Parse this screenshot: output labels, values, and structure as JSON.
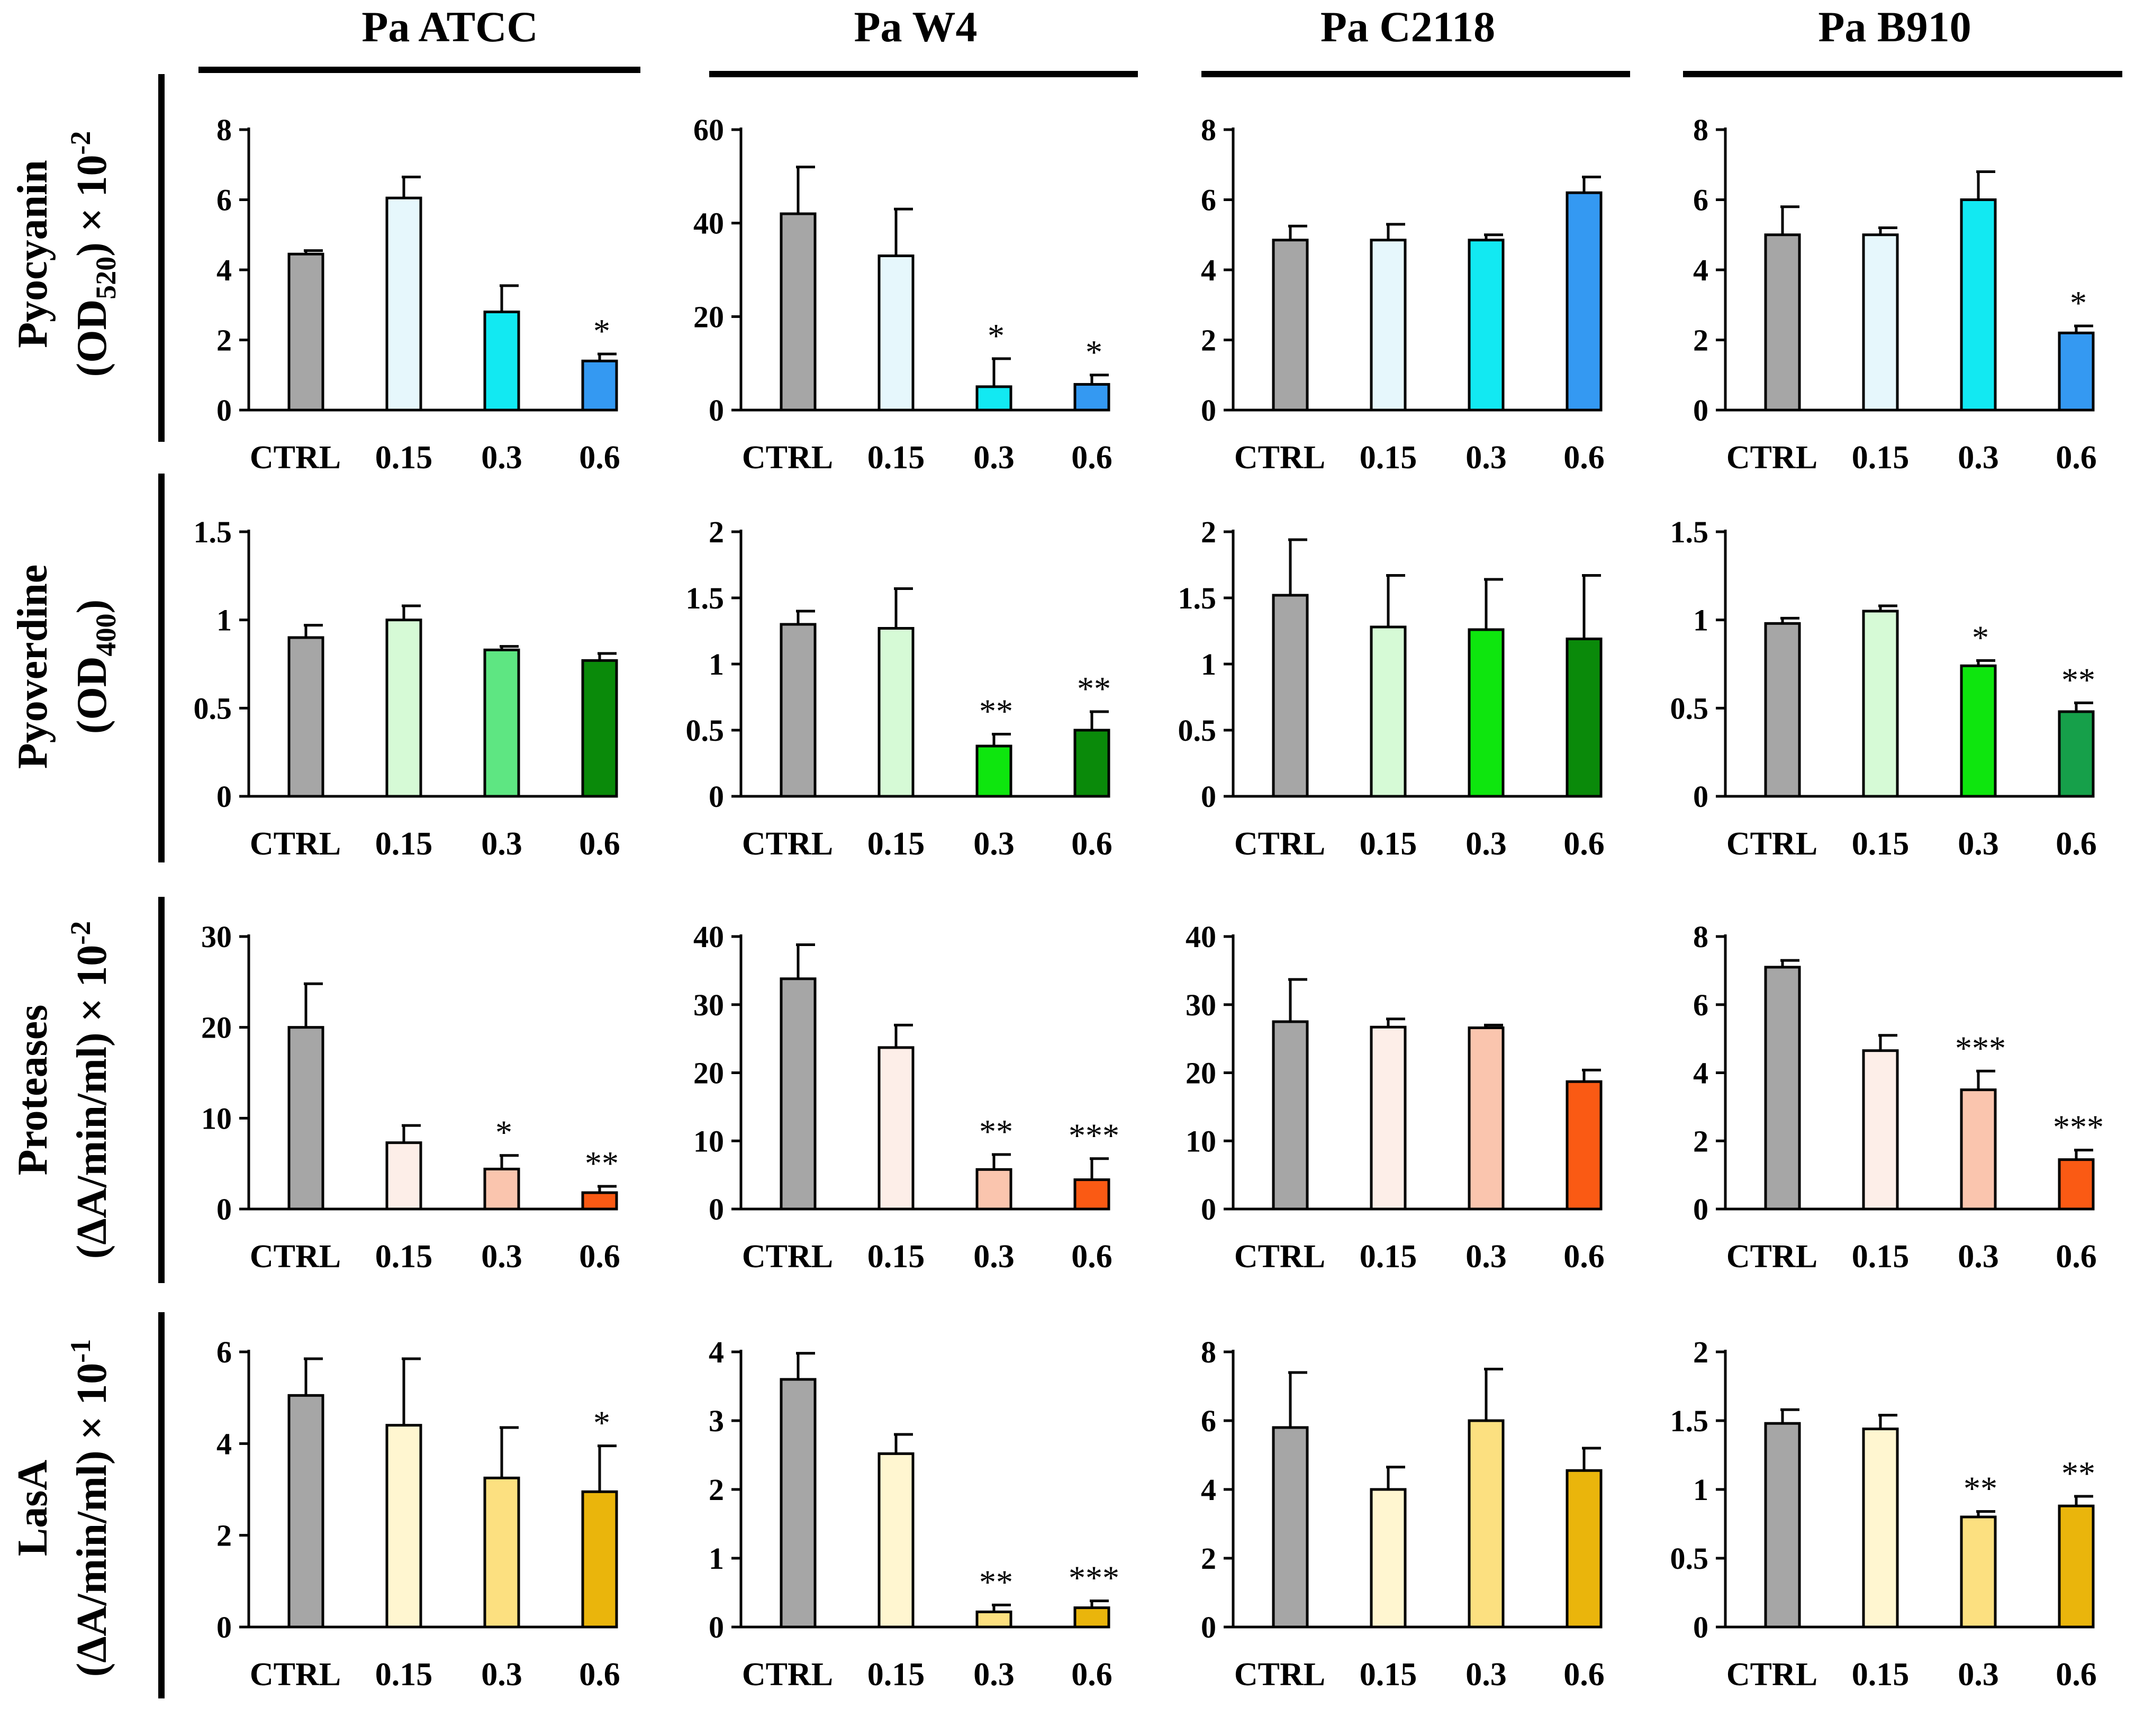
{
  "figure": {
    "categories": [
      "CTRL",
      "0.15",
      "0.3",
      "0.6"
    ],
    "strains": [
      "Pa ATCC",
      "Pa W4",
      "Pa C2118",
      "Pa B910"
    ],
    "row_labels": [
      {
        "line1": "Pyocyanin",
        "line2_parts": [
          "(OD",
          "520",
          ") × 10",
          "-2"
        ]
      },
      {
        "line1": "Pyoverdine",
        "line2_parts": [
          "(OD",
          "400",
          ")",
          ""
        ]
      },
      {
        "line1": "Proteases",
        "line2_parts": [
          "(ΔA/min/ml) × 10",
          "",
          "",
          "-2"
        ]
      },
      {
        "line1": "LasA",
        "line2_parts": [
          "(ΔA/min/ml) × 10",
          "",
          "",
          "-1"
        ]
      }
    ]
  },
  "chart_data": [
    {
      "type": "bar",
      "row": 0,
      "col": 0,
      "title": "Pa ATCC",
      "ylabel": "Pyocyanin (OD520) × 10-2",
      "ylim": [
        0,
        8
      ],
      "yticks": [
        0,
        2,
        4,
        6,
        8
      ],
      "categories": [
        "CTRL",
        "0.15",
        "0.3",
        "0.6"
      ],
      "values": [
        4.45,
        6.05,
        2.8,
        1.4
      ],
      "errors": [
        0.1,
        0.6,
        0.75,
        0.2
      ],
      "significance": [
        "",
        "",
        "",
        "*"
      ],
      "colors": [
        "#a6a6a6",
        "#e6f7fc",
        "#12e9f2",
        "#3499f2"
      ]
    },
    {
      "type": "bar",
      "row": 0,
      "col": 1,
      "title": "Pa W4",
      "ylabel": "Pyocyanin (OD520) × 10-2",
      "ylim": [
        0,
        60
      ],
      "yticks": [
        0,
        20,
        40,
        60
      ],
      "categories": [
        "CTRL",
        "0.15",
        "0.3",
        "0.6"
      ],
      "values": [
        42,
        33,
        5,
        5.5
      ],
      "errors": [
        10,
        10,
        6,
        2
      ],
      "significance": [
        "",
        "",
        "*",
        "*"
      ],
      "colors": [
        "#a6a6a6",
        "#e6f7fc",
        "#12e9f2",
        "#3499f2"
      ]
    },
    {
      "type": "bar",
      "row": 0,
      "col": 2,
      "title": "Pa C2118",
      "ylabel": "Pyocyanin (OD520) × 10-2",
      "ylim": [
        0,
        8
      ],
      "yticks": [
        0,
        2,
        4,
        6,
        8
      ],
      "categories": [
        "CTRL",
        "0.15",
        "0.3",
        "0.6"
      ],
      "values": [
        4.85,
        4.85,
        4.85,
        6.2
      ],
      "errors": [
        0.4,
        0.45,
        0.15,
        0.45
      ],
      "significance": [
        "",
        "",
        "",
        ""
      ],
      "colors": [
        "#a6a6a6",
        "#e6f7fc",
        "#12e9f2",
        "#3499f2"
      ]
    },
    {
      "type": "bar",
      "row": 0,
      "col": 3,
      "title": "Pa B910",
      "ylabel": "Pyocyanin (OD520) × 10-2",
      "ylim": [
        0,
        8
      ],
      "yticks": [
        0,
        2,
        4,
        6,
        8
      ],
      "categories": [
        "CTRL",
        "0.15",
        "0.3",
        "0.6"
      ],
      "values": [
        5,
        5,
        6,
        2.2
      ],
      "errors": [
        0.8,
        0.2,
        0.8,
        0.2
      ],
      "significance": [
        "",
        "",
        "",
        "*"
      ],
      "colors": [
        "#a6a6a6",
        "#e6f7fc",
        "#12e9f2",
        "#3499f2"
      ]
    },
    {
      "type": "bar",
      "row": 1,
      "col": 0,
      "title": "Pa ATCC",
      "ylabel": "Pyoverdine (OD400)",
      "ylim": [
        0,
        1.5
      ],
      "yticks": [
        0,
        0.5,
        1,
        1.5
      ],
      "categories": [
        "CTRL",
        "0.15",
        "0.3",
        "0.6"
      ],
      "values": [
        0.9,
        1.0,
        0.83,
        0.77
      ],
      "errors": [
        0.07,
        0.08,
        0.02,
        0.04
      ],
      "significance": [
        "",
        "",
        "",
        ""
      ],
      "colors": [
        "#a6a6a6",
        "#d6fad6",
        "#5ee682",
        "#0a8a0a"
      ]
    },
    {
      "type": "bar",
      "row": 1,
      "col": 1,
      "title": "Pa W4",
      "ylabel": "Pyoverdine (OD400)",
      "ylim": [
        0,
        2
      ],
      "yticks": [
        0,
        0.5,
        1,
        1.5,
        2
      ],
      "categories": [
        "CTRL",
        "0.15",
        "0.3",
        "0.6"
      ],
      "values": [
        1.3,
        1.27,
        0.38,
        0.5
      ],
      "errors": [
        0.1,
        0.3,
        0.09,
        0.14
      ],
      "significance": [
        "",
        "",
        "**",
        "**"
      ],
      "colors": [
        "#a6a6a6",
        "#d6fad6",
        "#0ee60e",
        "#0a8a0a"
      ]
    },
    {
      "type": "bar",
      "row": 1,
      "col": 2,
      "title": "Pa C2118",
      "ylabel": "Pyoverdine (OD400)",
      "ylim": [
        0,
        2
      ],
      "yticks": [
        0,
        0.5,
        1,
        1.5,
        2
      ],
      "categories": [
        "CTRL",
        "0.15",
        "0.3",
        "0.6"
      ],
      "values": [
        1.52,
        1.28,
        1.26,
        1.19
      ],
      "errors": [
        0.42,
        0.39,
        0.38,
        0.48
      ],
      "significance": [
        "",
        "",
        "",
        ""
      ],
      "colors": [
        "#a6a6a6",
        "#d6fad6",
        "#0ee60e",
        "#0a8a0a"
      ]
    },
    {
      "type": "bar",
      "row": 1,
      "col": 3,
      "title": "Pa B910",
      "ylabel": "Pyoverdine (OD400)",
      "ylim": [
        0,
        1.5
      ],
      "yticks": [
        0,
        0.5,
        1,
        1.5
      ],
      "categories": [
        "CTRL",
        "0.15",
        "0.3",
        "0.6"
      ],
      "values": [
        0.98,
        1.05,
        0.74,
        0.48
      ],
      "errors": [
        0.03,
        0.03,
        0.03,
        0.05
      ],
      "significance": [
        "",
        "",
        "*",
        "**"
      ],
      "colors": [
        "#a6a6a6",
        "#d6fad6",
        "#0ee60e",
        "#16a04a"
      ]
    },
    {
      "type": "bar",
      "row": 2,
      "col": 0,
      "title": "Pa ATCC",
      "ylabel": "Proteases (ΔA/min/ml) × 10-2",
      "ylim": [
        0,
        30
      ],
      "yticks": [
        0,
        10,
        20,
        30
      ],
      "categories": [
        "CTRL",
        "0.15",
        "0.3",
        "0.6"
      ],
      "values": [
        20,
        7.3,
        4.4,
        1.8
      ],
      "errors": [
        4.8,
        1.9,
        1.5,
        0.7
      ],
      "significance": [
        "",
        "",
        "*",
        "**"
      ],
      "colors": [
        "#a6a6a6",
        "#fdeee8",
        "#fac5ae",
        "#fa5a14"
      ]
    },
    {
      "type": "bar",
      "row": 2,
      "col": 1,
      "title": "Pa W4",
      "ylabel": "Proteases (ΔA/min/ml) × 10-2",
      "ylim": [
        0,
        40
      ],
      "yticks": [
        0,
        10,
        20,
        30,
        40
      ],
      "categories": [
        "CTRL",
        "0.15",
        "0.3",
        "0.6"
      ],
      "values": [
        33.8,
        23.7,
        5.8,
        4.3
      ],
      "errors": [
        5,
        3.3,
        2.2,
        3.1
      ],
      "significance": [
        "",
        "",
        "**",
        "***"
      ],
      "colors": [
        "#a6a6a6",
        "#fdeee8",
        "#fac5ae",
        "#fa5a14"
      ]
    },
    {
      "type": "bar",
      "row": 2,
      "col": 2,
      "title": "Pa C2118",
      "ylabel": "Proteases (ΔA/min/ml) × 10-2",
      "ylim": [
        0,
        40
      ],
      "yticks": [
        0,
        10,
        20,
        30,
        40
      ],
      "categories": [
        "CTRL",
        "0.15",
        "0.3",
        "0.6"
      ],
      "values": [
        27.5,
        26.7,
        26.6,
        18.7
      ],
      "errors": [
        6.2,
        1.2,
        0.4,
        1.7
      ],
      "significance": [
        "",
        "",
        "",
        ""
      ],
      "colors": [
        "#a6a6a6",
        "#fdeee8",
        "#fac5ae",
        "#fa5a14"
      ]
    },
    {
      "type": "bar",
      "row": 2,
      "col": 3,
      "title": "Pa B910",
      "ylabel": "Proteases (ΔA/min/ml) × 10-2",
      "ylim": [
        0,
        8
      ],
      "yticks": [
        0,
        2,
        4,
        6,
        8
      ],
      "categories": [
        "CTRL",
        "0.15",
        "0.3",
        "0.6"
      ],
      "values": [
        7.1,
        4.65,
        3.5,
        1.45
      ],
      "errors": [
        0.2,
        0.45,
        0.55,
        0.28
      ],
      "significance": [
        "",
        "",
        "***",
        "***"
      ],
      "colors": [
        "#a6a6a6",
        "#fdeee8",
        "#fac5ae",
        "#fa5a14"
      ]
    },
    {
      "type": "bar",
      "row": 3,
      "col": 0,
      "title": "Pa ATCC",
      "ylabel": "LasA (ΔA/min/ml) × 10-1",
      "ylim": [
        0,
        6
      ],
      "yticks": [
        0,
        2,
        4,
        6
      ],
      "categories": [
        "CTRL",
        "0.15",
        "0.3",
        "0.6"
      ],
      "values": [
        5.05,
        4.4,
        3.25,
        2.95
      ],
      "errors": [
        0.8,
        1.45,
        1.1,
        1.0
      ],
      "significance": [
        "",
        "",
        "",
        "*"
      ],
      "colors": [
        "#a6a6a6",
        "#fff6d0",
        "#fce080",
        "#eab50c"
      ]
    },
    {
      "type": "bar",
      "row": 3,
      "col": 1,
      "title": "Pa W4",
      "ylabel": "LasA (ΔA/min/ml) × 10-1",
      "ylim": [
        0,
        4
      ],
      "yticks": [
        0,
        1,
        2,
        3,
        4
      ],
      "categories": [
        "CTRL",
        "0.15",
        "0.3",
        "0.6"
      ],
      "values": [
        3.6,
        2.52,
        0.22,
        0.28
      ],
      "errors": [
        0.38,
        0.28,
        0.1,
        0.1
      ],
      "significance": [
        "",
        "",
        "**",
        "***"
      ],
      "colors": [
        "#a6a6a6",
        "#fff6d0",
        "#fce080",
        "#eab50c"
      ]
    },
    {
      "type": "bar",
      "row": 3,
      "col": 2,
      "title": "Pa C2118",
      "ylabel": "LasA (ΔA/min/ml) × 10-1",
      "ylim": [
        0,
        8
      ],
      "yticks": [
        0,
        2,
        4,
        6,
        8
      ],
      "categories": [
        "CTRL",
        "0.15",
        "0.3",
        "0.6"
      ],
      "values": [
        5.8,
        4.0,
        6.0,
        4.55
      ],
      "errors": [
        1.6,
        0.65,
        1.5,
        0.65
      ],
      "significance": [
        "",
        "",
        "",
        ""
      ],
      "colors": [
        "#a6a6a6",
        "#fff6d0",
        "#fce080",
        "#eab50c"
      ]
    },
    {
      "type": "bar",
      "row": 3,
      "col": 3,
      "title": "Pa B910",
      "ylabel": "LasA (ΔA/min/ml) × 10-1",
      "ylim": [
        0,
        2
      ],
      "yticks": [
        0,
        0.5,
        1,
        1.5,
        2
      ],
      "categories": [
        "CTRL",
        "0.15",
        "0.3",
        "0.6"
      ],
      "values": [
        1.48,
        1.44,
        0.8,
        0.88
      ],
      "errors": [
        0.1,
        0.1,
        0.04,
        0.07
      ],
      "significance": [
        "",
        "",
        "**",
        "**"
      ],
      "colors": [
        "#a6a6a6",
        "#fff6d0",
        "#fce080",
        "#eab50c"
      ]
    }
  ]
}
